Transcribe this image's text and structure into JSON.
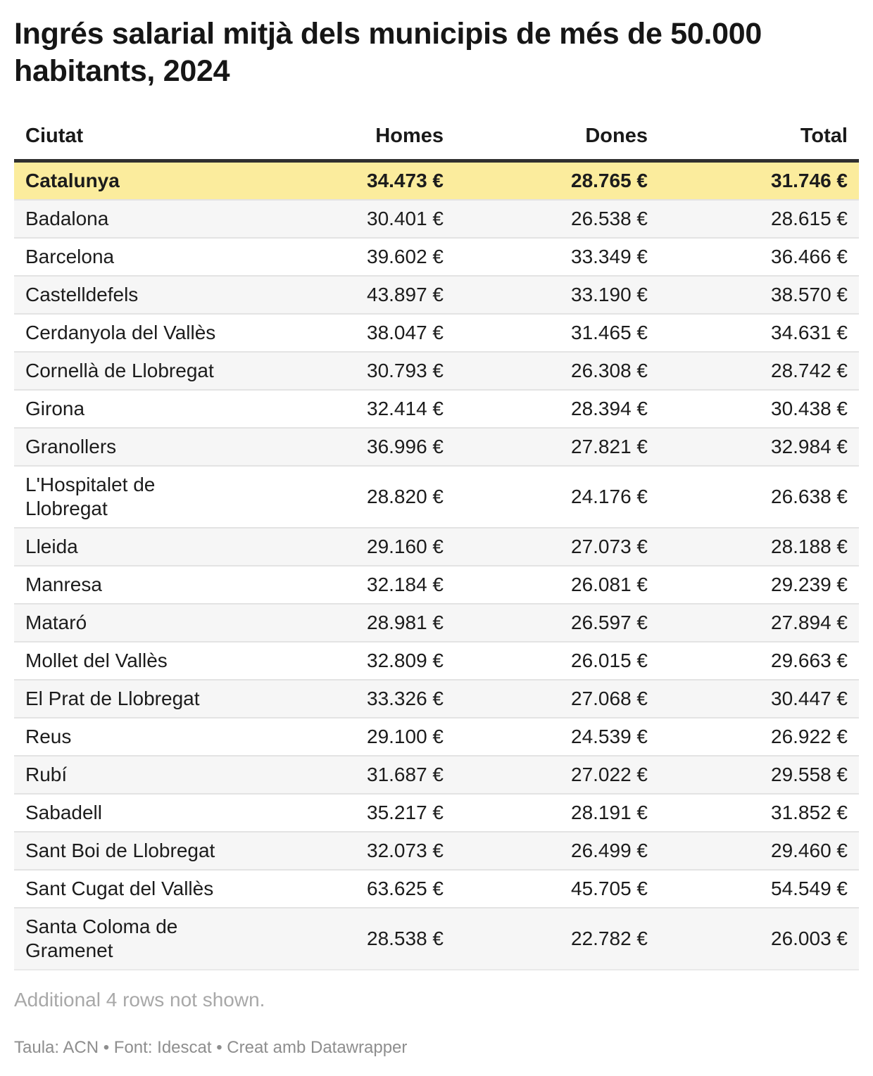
{
  "chart_data": {
    "type": "table",
    "title": "Ingrés salarial mitjà dels municipis de més de 50.000 habitants, 2024",
    "columns": [
      "Ciutat",
      "Homes",
      "Dones",
      "Total"
    ],
    "unit": "€",
    "highlighted_row": "Catalunya",
    "rows": [
      {
        "ciutat": "Catalunya",
        "homes": "34.473 €",
        "dones": "28.765 €",
        "total": "31.746 €"
      },
      {
        "ciutat": "Badalona",
        "homes": "30.401 €",
        "dones": "26.538 €",
        "total": "28.615 €"
      },
      {
        "ciutat": "Barcelona",
        "homes": "39.602 €",
        "dones": "33.349 €",
        "total": "36.466 €"
      },
      {
        "ciutat": "Castelldefels",
        "homes": "43.897 €",
        "dones": "33.190 €",
        "total": "38.570 €"
      },
      {
        "ciutat": "Cerdanyola del Vallès",
        "homes": "38.047 €",
        "dones": "31.465 €",
        "total": "34.631 €"
      },
      {
        "ciutat": "Cornellà de Llobregat",
        "homes": "30.793 €",
        "dones": "26.308 €",
        "total": "28.742 €"
      },
      {
        "ciutat": "Girona",
        "homes": "32.414 €",
        "dones": "28.394 €",
        "total": "30.438 €"
      },
      {
        "ciutat": "Granollers",
        "homes": "36.996 €",
        "dones": "27.821 €",
        "total": "32.984 €"
      },
      {
        "ciutat": "L'Hospitalet de Llobregat",
        "homes": "28.820 €",
        "dones": "24.176 €",
        "total": "26.638 €"
      },
      {
        "ciutat": "Lleida",
        "homes": "29.160 €",
        "dones": "27.073 €",
        "total": "28.188 €"
      },
      {
        "ciutat": "Manresa",
        "homes": "32.184 €",
        "dones": "26.081 €",
        "total": "29.239 €"
      },
      {
        "ciutat": "Mataró",
        "homes": "28.981 €",
        "dones": "26.597 €",
        "total": "27.894 €"
      },
      {
        "ciutat": "Mollet del Vallès",
        "homes": "32.809 €",
        "dones": "26.015 €",
        "total": "29.663 €"
      },
      {
        "ciutat": "El Prat de Llobregat",
        "homes": "33.326 €",
        "dones": "27.068 €",
        "total": "30.447 €"
      },
      {
        "ciutat": "Reus",
        "homes": "29.100 €",
        "dones": "24.539 €",
        "total": "26.922 €"
      },
      {
        "ciutat": "Rubí",
        "homes": "31.687 €",
        "dones": "27.022 €",
        "total": "29.558 €"
      },
      {
        "ciutat": "Sabadell",
        "homes": "35.217 €",
        "dones": "28.191 €",
        "total": "31.852 €"
      },
      {
        "ciutat": "Sant Boi de Llobregat",
        "homes": "32.073 €",
        "dones": "26.499 €",
        "total": "29.460 €"
      },
      {
        "ciutat": "Sant Cugat del Vallès",
        "homes": "63.625 €",
        "dones": "45.705 €",
        "total": "54.549 €"
      },
      {
        "ciutat": "Santa Coloma de Gramenet",
        "homes": "28.538 €",
        "dones": "22.782 €",
        "total": "26.003 €"
      }
    ]
  },
  "notes": {
    "additional": "Additional 4 rows not shown."
  },
  "attribution": "Taula: ACN • Font: Idescat • Creat amb Datawrapper",
  "colors": {
    "highlight_bg": "#fbec9d",
    "stripe_bg": "#f6f6f6",
    "header_rule": "#2f2f2f",
    "row_border": "#e3e3e3",
    "note_gray": "#a8a8a8",
    "attribution_gray": "#8e8e8e"
  }
}
